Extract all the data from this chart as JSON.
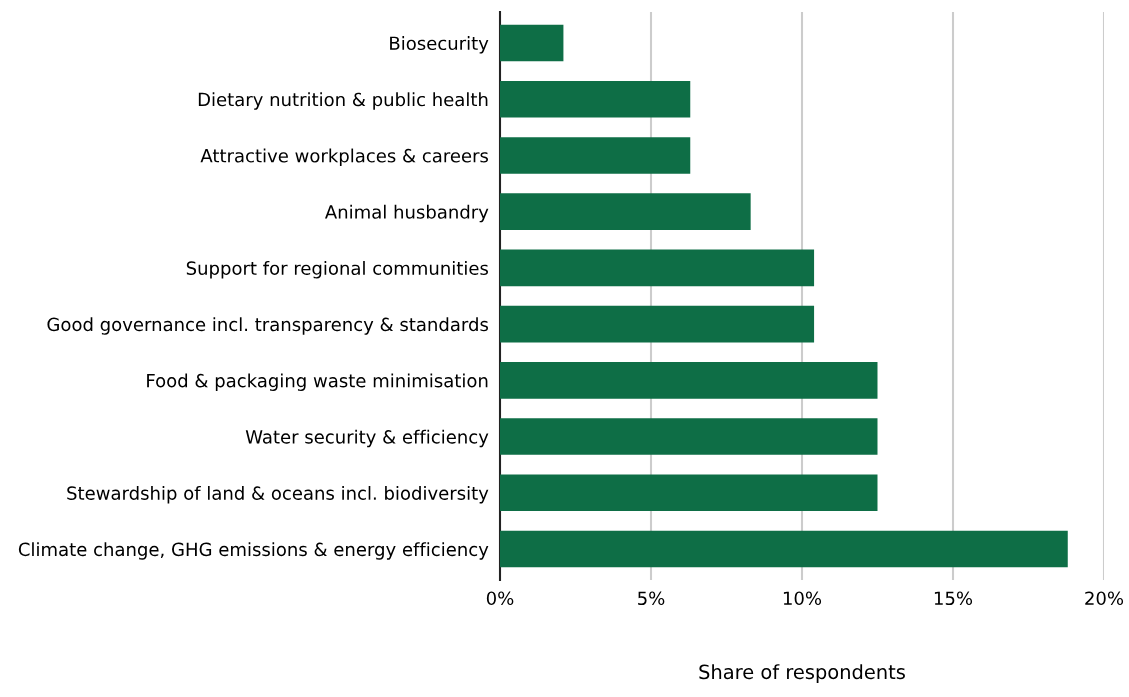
{
  "chart_data": {
    "type": "bar",
    "orientation": "horizontal",
    "xlabel": "Share of respondents",
    "categories": [
      "Biosecurity",
      "Dietary nutrition & public health",
      "Attractive workplaces & careers",
      "Animal husbandry",
      "Support for regional communities",
      "Good governance incl. transparency & standards",
      "Food & packaging waste minimisation",
      "Water security & efficiency",
      "Stewardship of land & oceans incl. biodiversity",
      "Climate change, GHG emissions & energy efficiency"
    ],
    "values": [
      2.1,
      6.3,
      6.3,
      8.3,
      10.4,
      10.4,
      12.5,
      12.5,
      12.5,
      18.8
    ],
    "color": "#0e6e46",
    "xlim": [
      0,
      20
    ],
    "xticks": [
      {
        "value": 0,
        "label": "0%"
      },
      {
        "value": 5,
        "label": "5%"
      },
      {
        "value": 10,
        "label": "10%"
      },
      {
        "value": 15,
        "label": "15%"
      },
      {
        "value": 20,
        "label": "20%"
      }
    ],
    "grid": "x",
    "legend": false
  }
}
